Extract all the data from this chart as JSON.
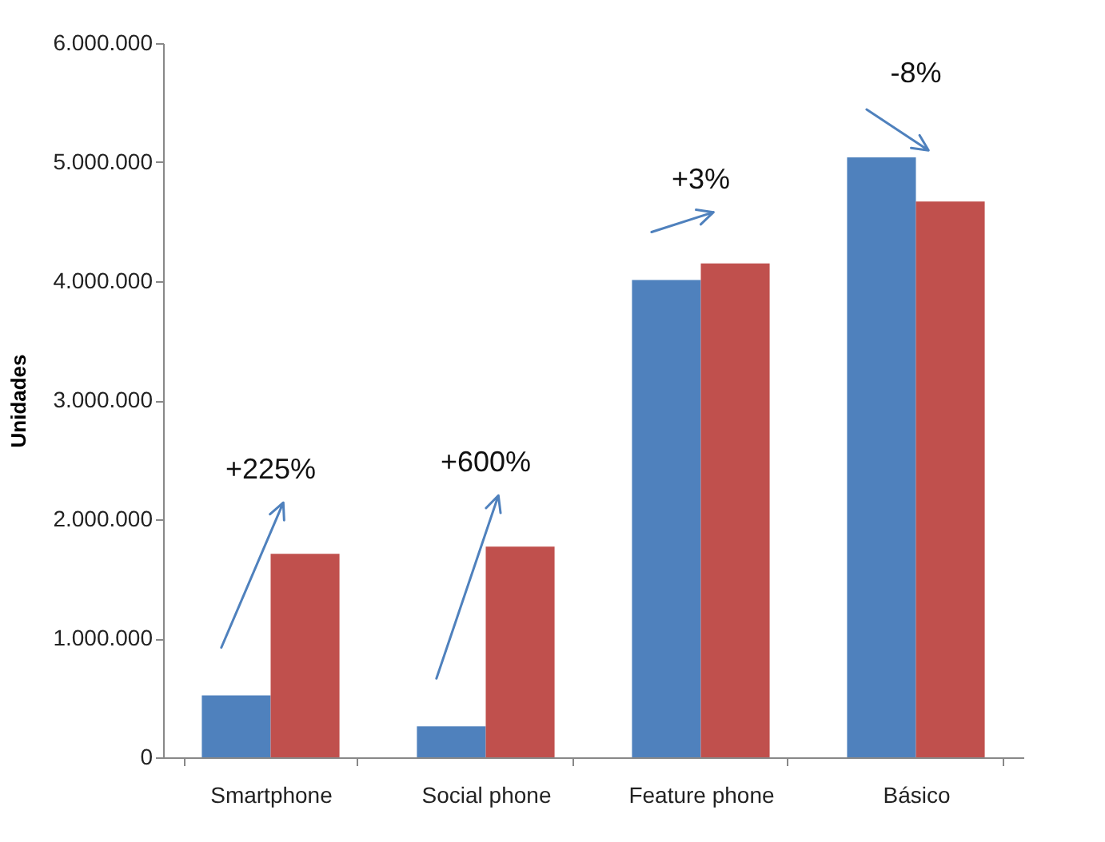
{
  "chart_data": {
    "type": "bar",
    "ylabel": "Unidades",
    "categories": [
      "Smartphone",
      "Social phone",
      "Feature phone",
      "Básico"
    ],
    "series": [
      {
        "color": "#4f81bd",
        "values": [
          520000,
          260000,
          4010000,
          5040000
        ]
      },
      {
        "color": "#c0504d",
        "values": [
          1710000,
          1770000,
          4150000,
          4670000
        ]
      }
    ],
    "ylim": [
      0,
      6000000
    ],
    "yticks": [
      {
        "value": 0,
        "label": "0"
      },
      {
        "value": 1000000,
        "label": "1.000.000"
      },
      {
        "value": 2000000,
        "label": "2.000.000"
      },
      {
        "value": 3000000,
        "label": "3.000.000"
      },
      {
        "value": 4000000,
        "label": "4.000.000"
      },
      {
        "value": 5000000,
        "label": "5.000.000"
      },
      {
        "value": 6000000,
        "label": "6.000.000"
      }
    ],
    "annotations": [
      "+225%",
      "+600%",
      "+3%",
      "-8%"
    ],
    "grid": false
  }
}
